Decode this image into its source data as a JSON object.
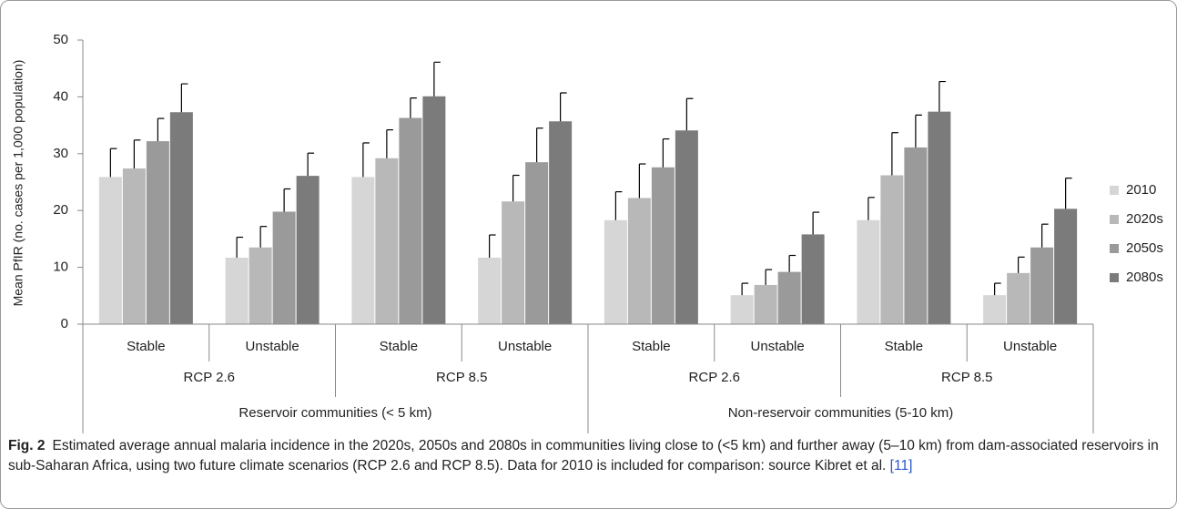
{
  "chart_data": {
    "type": "bar",
    "y_label": "Mean PfIR (no. cases per 1,000 population)",
    "categories": [
      "Stable",
      "Unstable",
      "Stable",
      "Unstable",
      "Stable",
      "Unstable",
      "Stable",
      "Unstable"
    ],
    "groups": [
      "RCP 2.6",
      "RCP 8.5",
      "RCP 2.6",
      "RCP 8.5"
    ],
    "supergroups": [
      "Reservoir communities (< 5 km)",
      "Non-reservoir communities (5-10 km)"
    ],
    "series": [
      {
        "name": "2010",
        "color": "#d6d6d6",
        "values": [
          25.9,
          11.7,
          25.9,
          11.7,
          18.3,
          5.1,
          18.3,
          5.1
        ],
        "errors": [
          5.0,
          3.6,
          6.0,
          4.0,
          5.0,
          2.1,
          4.0,
          2.1
        ]
      },
      {
        "name": "2020s",
        "color": "#b8b8b8",
        "values": [
          27.4,
          13.5,
          29.2,
          21.6,
          22.2,
          6.9,
          26.2,
          9.0
        ],
        "errors": [
          5.0,
          3.7,
          5.0,
          4.6,
          6.0,
          2.7,
          7.5,
          2.8
        ]
      },
      {
        "name": "2050s",
        "color": "#9a9a9a",
        "values": [
          32.2,
          19.8,
          36.3,
          28.5,
          27.6,
          9.2,
          31.1,
          13.5
        ],
        "errors": [
          4.0,
          4.0,
          3.5,
          6.0,
          5.0,
          2.9,
          5.7,
          4.1
        ]
      },
      {
        "name": "2080s",
        "color": "#7b7b7b",
        "values": [
          37.3,
          26.1,
          40.1,
          35.7,
          34.1,
          15.8,
          37.4,
          20.3
        ],
        "errors": [
          5.0,
          4.0,
          6.0,
          5.0,
          5.6,
          3.9,
          5.3,
          5.4
        ]
      }
    ],
    "ylim": [
      0,
      50
    ],
    "yticks": [
      0,
      10,
      20,
      30,
      40,
      50
    ]
  },
  "caption": {
    "label": "Fig. 2",
    "text": "Estimated average annual malaria incidence in the 2020s, 2050s and 2080s in communities living close to (<5 km) and further away (5–10 km) from dam-associated reservoirs in sub-Saharan Africa, using two future climate scenarios (RCP 2.6 and RCP 8.5). Data for 2010 is included for comparison: source Kibret et al.",
    "citation": "[11]"
  }
}
